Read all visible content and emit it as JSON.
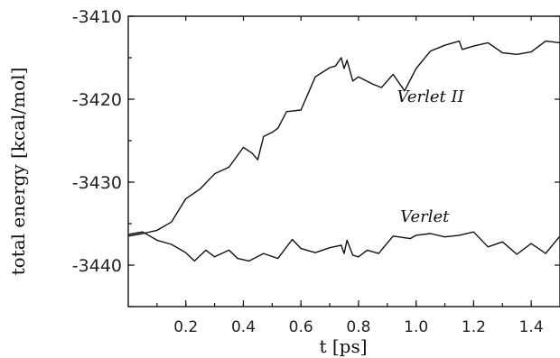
{
  "chart_data": {
    "type": "line",
    "xlabel": "t [ps]",
    "ylabel": "total energy [kcal/mol]",
    "xlim": [
      0.0,
      1.5
    ],
    "ylim": [
      -3445,
      -3410
    ],
    "x_ticks": [
      "0.2",
      "0.4",
      "0.6",
      "0.8",
      "1.0",
      "1.2",
      "1.4"
    ],
    "y_ticks": [
      "-3410",
      "-3420",
      "-3430",
      "-3440"
    ],
    "grid": false,
    "series": [
      {
        "name": "Verlet II",
        "points": [
          [
            0.0,
            -3436.5
          ],
          [
            0.05,
            -3436.2
          ],
          [
            0.1,
            -3435.8
          ],
          [
            0.15,
            -3434.8
          ],
          [
            0.2,
            -3432.0
          ],
          [
            0.25,
            -3430.8
          ],
          [
            0.3,
            -3429.0
          ],
          [
            0.35,
            -3428.2
          ],
          [
            0.4,
            -3425.8
          ],
          [
            0.43,
            -3426.5
          ],
          [
            0.45,
            -3427.3
          ],
          [
            0.47,
            -3424.5
          ],
          [
            0.5,
            -3424.0
          ],
          [
            0.52,
            -3423.5
          ],
          [
            0.55,
            -3421.5
          ],
          [
            0.6,
            -3421.3
          ],
          [
            0.65,
            -3417.3
          ],
          [
            0.7,
            -3416.2
          ],
          [
            0.72,
            -3416.0
          ],
          [
            0.74,
            -3415.0
          ],
          [
            0.75,
            -3416.3
          ],
          [
            0.76,
            -3415.3
          ],
          [
            0.78,
            -3417.8
          ],
          [
            0.8,
            -3417.3
          ],
          [
            0.85,
            -3418.2
          ],
          [
            0.88,
            -3418.6
          ],
          [
            0.92,
            -3417.0
          ],
          [
            0.96,
            -3419.0
          ],
          [
            1.0,
            -3416.3
          ],
          [
            1.05,
            -3414.2
          ],
          [
            1.1,
            -3413.5
          ],
          [
            1.15,
            -3413.0
          ],
          [
            1.16,
            -3414.0
          ],
          [
            1.2,
            -3413.6
          ],
          [
            1.25,
            -3413.2
          ],
          [
            1.3,
            -3414.4
          ],
          [
            1.35,
            -3414.6
          ],
          [
            1.4,
            -3414.3
          ],
          [
            1.45,
            -3413.0
          ],
          [
            1.5,
            -3413.2
          ]
        ]
      },
      {
        "name": "Verlet",
        "points": [
          [
            0.0,
            -3436.3
          ],
          [
            0.05,
            -3436.0
          ],
          [
            0.1,
            -3437.0
          ],
          [
            0.15,
            -3437.5
          ],
          [
            0.2,
            -3438.5
          ],
          [
            0.23,
            -3439.5
          ],
          [
            0.27,
            -3438.2
          ],
          [
            0.3,
            -3439.0
          ],
          [
            0.35,
            -3438.2
          ],
          [
            0.38,
            -3439.2
          ],
          [
            0.42,
            -3439.5
          ],
          [
            0.47,
            -3438.6
          ],
          [
            0.52,
            -3439.2
          ],
          [
            0.57,
            -3436.9
          ],
          [
            0.6,
            -3438.0
          ],
          [
            0.65,
            -3438.5
          ],
          [
            0.7,
            -3437.9
          ],
          [
            0.74,
            -3437.6
          ],
          [
            0.75,
            -3438.6
          ],
          [
            0.76,
            -3437.0
          ],
          [
            0.78,
            -3438.8
          ],
          [
            0.8,
            -3439.0
          ],
          [
            0.83,
            -3438.2
          ],
          [
            0.87,
            -3438.6
          ],
          [
            0.92,
            -3436.5
          ],
          [
            0.98,
            -3436.8
          ],
          [
            1.0,
            -3436.4
          ],
          [
            1.05,
            -3436.2
          ],
          [
            1.1,
            -3436.6
          ],
          [
            1.15,
            -3436.4
          ],
          [
            1.2,
            -3436.0
          ],
          [
            1.25,
            -3437.8
          ],
          [
            1.3,
            -3437.2
          ],
          [
            1.35,
            -3438.7
          ],
          [
            1.4,
            -3437.4
          ],
          [
            1.45,
            -3438.6
          ],
          [
            1.5,
            -3436.5
          ]
        ]
      }
    ]
  }
}
